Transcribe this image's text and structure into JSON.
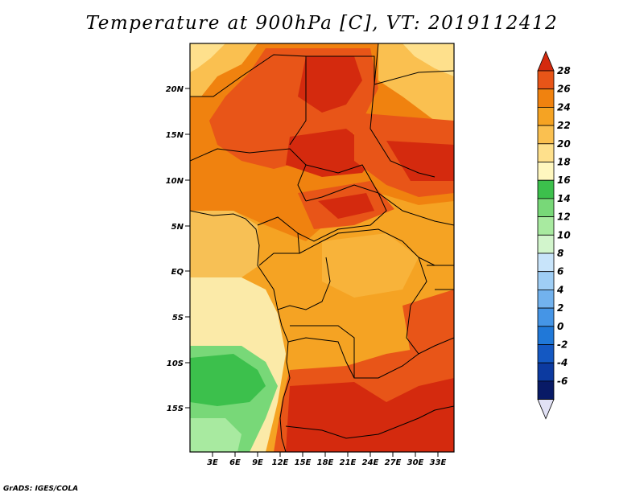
{
  "title": "Temperature at 900hPa [C], VT: 2019112412",
  "footer": "GrADS: IGES/COLA",
  "map": {
    "lat_labels": [
      "20N",
      "15N",
      "10N",
      "5N",
      "EQ",
      "5S",
      "10S",
      "15S"
    ],
    "lon_labels": [
      "3E",
      "6E",
      "9E",
      "12E",
      "15E",
      "18E",
      "21E",
      "24E",
      "27E",
      "30E",
      "33E"
    ]
  },
  "colorbar": {
    "labels": [
      "28",
      "26",
      "24",
      "22",
      "20",
      "18",
      "16",
      "14",
      "12",
      "10",
      "8",
      "6",
      "4",
      "2",
      "0",
      "-2",
      "-4",
      "-6"
    ],
    "colors": [
      "#d42a0e",
      "#e85518",
      "#f0820f",
      "#f5a323",
      "#fac050",
      "#fee08c",
      "#fff7bf",
      "#3cc04c",
      "#78d878",
      "#a8eaa0",
      "#d2f5cc",
      "#c8e4fa",
      "#9fcef5",
      "#72b2ee",
      "#4595e6",
      "#2078d8",
      "#1458c2",
      "#0c3aa0",
      "#081a66",
      "#e1e1f5"
    ]
  },
  "legend_colors": {
    "ocean_south": "#fbeaa8",
    "ocean_gulf": "#f7c055",
    "green_sw": "#44c04c",
    "hot_red": "#d52d10"
  }
}
